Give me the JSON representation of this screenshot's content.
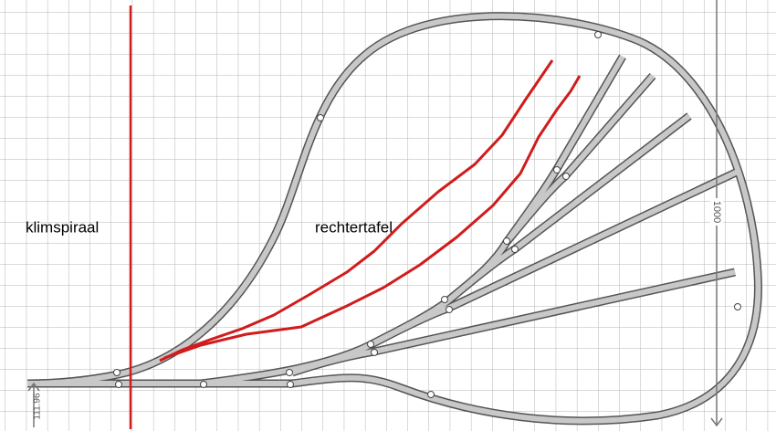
{
  "labels": {
    "climb": "klimspiraal",
    "table": "rechtertafel"
  },
  "dimensions": {
    "vertical": "1000",
    "left": "111.96"
  }
}
